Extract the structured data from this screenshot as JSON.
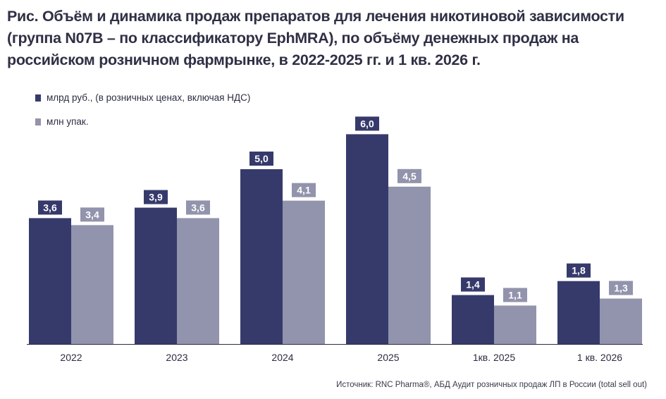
{
  "title": "Рис. Объём и динамика продаж препаратов для лечения никотиновой зависимости (группа N07B – по классификатору EphMRA), по объёму денежных продаж на российском розничном фармрынке, в 2022-2025 гг. и 1 кв. 2026 г.",
  "source": "Источник: RNC Pharma®, АБД Аудит розничных продаж ЛП в России (total sell out)",
  "colors": {
    "series1": "#363a6b",
    "series2": "#9293ac",
    "baseline": "#2b2d42"
  },
  "chart_data": {
    "type": "bar",
    "categories": [
      "2022",
      "2023",
      "2024",
      "2025",
      "1кв. 2025",
      "1 кв. 2026"
    ],
    "series": [
      {
        "name": "млрд руб., (в розничных ценах, включая НДС)",
        "values": [
          3.6,
          3.9,
          5.0,
          6.0,
          1.4,
          1.8
        ],
        "labels": [
          "3,6",
          "3,9",
          "5,0",
          "6,0",
          "1,4",
          "1,8"
        ]
      },
      {
        "name": "млн упак.",
        "values": [
          3.4,
          3.6,
          4.1,
          4.5,
          1.1,
          1.3
        ],
        "labels": [
          "3,4",
          "3,6",
          "4,1",
          "4,5",
          "1,1",
          "1,3"
        ]
      }
    ],
    "ylim": [
      0,
      6.0
    ],
    "legend_position": "top-left",
    "grid": false
  }
}
